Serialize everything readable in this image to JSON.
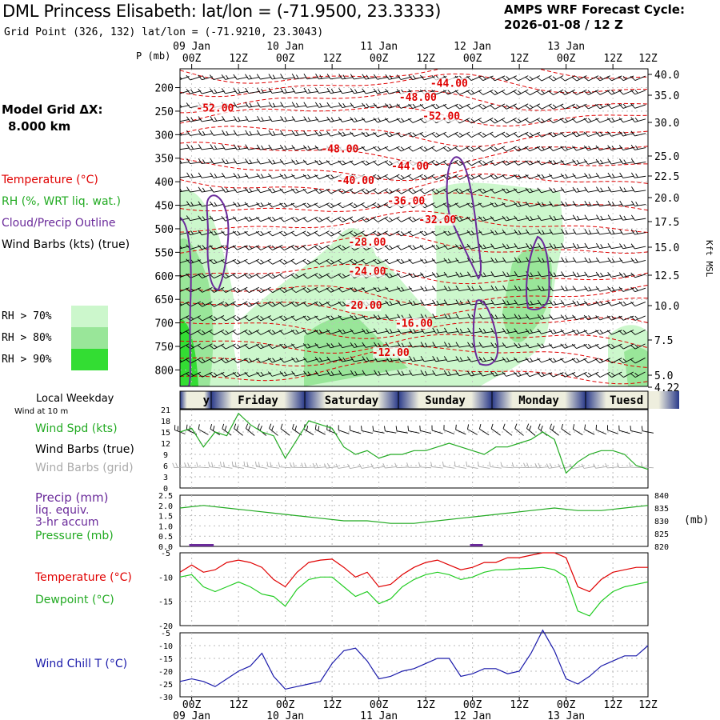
{
  "header": {
    "title": "DML Princess Elisabeth:  lat/lon = (-71.9500, 23.3333)",
    "subtitle": "Grid Point (326, 132) lat/lon = (-71.9210, 23.3043)",
    "cycle_line1": "AMPS WRF Forecast Cycle:",
    "cycle_line2": "2026-01-08 / 12  Z"
  },
  "side": {
    "grid_line1": "Model Grid ΔX:",
    "grid_line2": "8.000 km",
    "legend": [
      {
        "label": "Temperature (°C)",
        "color": "#e00000"
      },
      {
        "label": "RH (%, WRT liq. wat.)",
        "color": "#22cc22"
      },
      {
        "label": "Cloud/Precip Outline",
        "color": "#6a2a9a"
      },
      {
        "label": "Wind Barbs (kts) (true)",
        "color": "#000000"
      }
    ],
    "rh_levels": [
      {
        "label": "RH > 70%",
        "color": "#ccf7cc"
      },
      {
        "label": "RH > 80%",
        "color": "#99e699"
      },
      {
        "label": "RH > 90%",
        "color": "#33dd33"
      }
    ]
  },
  "time_axis": {
    "top_dates": [
      "09 Jan",
      "10 Jan",
      "11 Jan",
      "12 Jan",
      "13 Jan"
    ],
    "hours": [
      "00Z",
      "12Z",
      "00Z",
      "12Z",
      "00Z",
      "12Z",
      "00Z",
      "12Z",
      "00Z",
      "12Z"
    ],
    "bottom_hours": [
      "00Z",
      "12Z",
      "00Z",
      "12Z",
      "00Z",
      "12Z",
      "00Z",
      "12Z",
      "00Z",
      "12Z"
    ],
    "bottom_dates": [
      "09 Jan",
      "10 Jan",
      "11 Jan",
      "12 Jan",
      "13 Jan"
    ]
  },
  "weekday": {
    "label": "Local Weekday",
    "days": [
      "y",
      "Friday",
      "Saturday",
      "Sunday",
      "Monday",
      "Tuesd"
    ]
  },
  "wind10": {
    "label": "Wind at 10 m",
    "series": [
      {
        "label": "Wind Spd (kts)",
        "color": "#22aa22"
      },
      {
        "label": "Wind Barbs (true)",
        "color": "#000000"
      },
      {
        "label": "Wind Barbs (grid)",
        "color": "#aaaaaa"
      }
    ]
  },
  "precip_panel": {
    "labels": [
      {
        "text": "Precip (mm)",
        "color": "#6a2a9a"
      },
      {
        "text": "liq. equiv.",
        "color": "#6a2a9a"
      },
      {
        "text": "3-hr accum",
        "color": "#6a2a9a"
      },
      {
        "text": "Pressure (mb)",
        "color": "#22aa22"
      }
    ],
    "right_unit": "(mb)"
  },
  "temp_panel": {
    "labels": [
      {
        "text": "Temperature (°C)",
        "color": "#e00000"
      },
      {
        "text": "Dewpoint (°C)",
        "color": "#22aa22"
      }
    ]
  },
  "chill_panel": {
    "labels": [
      {
        "text": "Wind Chill T (°C)",
        "color": "#1a1aaa"
      }
    ]
  },
  "chart_data": [
    {
      "type": "heatmap",
      "name": "cross-section",
      "ylabel_left": "P (mb)",
      "ylabel_right": "Kft MSL",
      "y_ticks": [
        200,
        250,
        300,
        350,
        400,
        450,
        500,
        550,
        600,
        650,
        700,
        750,
        800
      ],
      "right_ticks": [
        "40.0",
        "35.0",
        "30.0",
        "25.0",
        "22.5",
        "20.0",
        "17.5",
        "15.0",
        "12.5",
        "10.0",
        "7.5",
        "5.0",
        "4.22"
      ],
      "temperature_labels": [
        {
          "t": 66,
          "p": 198,
          "text": "-44.00"
        },
        {
          "t": 58,
          "p": 228,
          "text": "-48.00"
        },
        {
          "t": 6,
          "p": 251,
          "text": "-52.00"
        },
        {
          "t": 64,
          "p": 268,
          "text": "-52.00"
        },
        {
          "t": 38,
          "p": 338,
          "text": "-48.00"
        },
        {
          "t": 56,
          "p": 374,
          "text": "-44.00"
        },
        {
          "t": 42,
          "p": 405,
          "text": "-40.00"
        },
        {
          "t": 55,
          "p": 448,
          "text": "-36.00"
        },
        {
          "t": 63,
          "p": 488,
          "text": "-32.00"
        },
        {
          "t": 45,
          "p": 536,
          "text": "-28.00"
        },
        {
          "t": 45,
          "p": 598,
          "text": "-24.00"
        },
        {
          "t": 44,
          "p": 670,
          "text": "-20.00"
        },
        {
          "t": 57,
          "p": 708,
          "text": "-16.00"
        },
        {
          "t": 51,
          "p": 770,
          "text": "-12.00"
        }
      ]
    },
    {
      "type": "line",
      "name": "wind-speed-10m",
      "ylim": [
        0,
        21
      ],
      "y_ticks": [
        0,
        3,
        6,
        9,
        12,
        15,
        18,
        21
      ],
      "x": [
        -3,
        0,
        3,
        6,
        9,
        12,
        15,
        18,
        21,
        24,
        27,
        30,
        33,
        36,
        39,
        42,
        45,
        48,
        51,
        54,
        57,
        60,
        63,
        66,
        69,
        72,
        75,
        78,
        81,
        84,
        87,
        90,
        93,
        96,
        99,
        102,
        105,
        108,
        111,
        114,
        117
      ],
      "series": [
        {
          "name": "Wind Spd (kts)",
          "values": [
            15,
            16,
            11,
            15,
            14,
            20,
            17,
            15,
            14,
            8,
            13,
            18,
            17,
            16,
            11,
            9,
            10,
            8,
            9,
            9,
            10,
            10,
            11,
            12,
            11,
            10,
            9,
            11,
            11,
            12,
            13,
            15,
            13,
            4,
            7,
            9,
            10,
            10,
            9,
            6,
            5
          ]
        }
      ]
    },
    {
      "type": "line",
      "name": "pressure-precip",
      "ylim_left": [
        0,
        2.5
      ],
      "ylim_right": [
        820,
        840
      ],
      "y_ticks_left": [
        "0.0",
        "0.5",
        "1.0",
        "1.5",
        "2.0",
        "2.5"
      ],
      "y_ticks_right": [
        820,
        825,
        830,
        835,
        840
      ],
      "x": [
        -3,
        3,
        9,
        15,
        21,
        27,
        33,
        39,
        45,
        51,
        57,
        63,
        69,
        75,
        81,
        87,
        93,
        99,
        105,
        111,
        117
      ],
      "series": [
        {
          "name": "Pressure (mb)",
          "values": [
            835,
            836,
            835,
            834,
            833,
            832,
            831,
            830,
            830,
            829,
            829,
            830,
            831,
            832,
            833,
            834,
            835,
            834,
            834,
            835,
            836
          ]
        }
      ],
      "precip_bars": [
        {
          "x": 1,
          "value": 0.1
        },
        {
          "x": 4,
          "value": 0.1
        },
        {
          "x": 73,
          "value": 0.05
        }
      ]
    },
    {
      "type": "line",
      "name": "temperature-dewpoint",
      "ylim": [
        -20,
        -5
      ],
      "y_ticks": [
        -5,
        -10,
        -15,
        -20
      ],
      "x": [
        -3,
        0,
        3,
        6,
        9,
        12,
        15,
        18,
        21,
        24,
        27,
        30,
        33,
        36,
        39,
        42,
        45,
        48,
        51,
        54,
        57,
        60,
        63,
        66,
        69,
        72,
        75,
        78,
        81,
        84,
        87,
        90,
        93,
        96,
        99,
        102,
        105,
        108,
        111,
        114,
        117
      ],
      "series": [
        {
          "name": "Temperature (°C)",
          "values": [
            -9,
            -7.5,
            -9,
            -8.5,
            -7,
            -6.5,
            -7,
            -8,
            -10.5,
            -12,
            -9,
            -7,
            -6.5,
            -6.3,
            -8,
            -10,
            -9,
            -12,
            -11.5,
            -9.5,
            -8,
            -7,
            -6.5,
            -7.5,
            -8.5,
            -8,
            -7,
            -7,
            -6,
            -6,
            -5.5,
            -5,
            -5,
            -6,
            -12,
            -13,
            -10.5,
            -9,
            -8.5,
            -8,
            -8
          ]
        },
        {
          "name": "Dewpoint (°C)",
          "values": [
            -10,
            -9.5,
            -12,
            -13,
            -12,
            -11,
            -12,
            -13.5,
            -14,
            -16,
            -12.5,
            -10.5,
            -10,
            -10,
            -12,
            -14,
            -13,
            -15.5,
            -14.5,
            -12,
            -10.5,
            -9.5,
            -9,
            -9.5,
            -10.5,
            -10,
            -9,
            -8.5,
            -8.5,
            -8.3,
            -8.2,
            -8,
            -8.5,
            -10,
            -17,
            -18,
            -15,
            -13,
            -12,
            -11.5,
            -11
          ]
        }
      ]
    },
    {
      "type": "line",
      "name": "wind-chill",
      "ylim": [
        -30,
        -5
      ],
      "y_ticks": [
        -5,
        -10,
        -15,
        -20,
        -25,
        -30
      ],
      "x": [
        -3,
        0,
        3,
        6,
        9,
        12,
        15,
        18,
        21,
        24,
        27,
        30,
        33,
        36,
        39,
        42,
        45,
        48,
        51,
        54,
        57,
        60,
        63,
        66,
        69,
        72,
        75,
        78,
        81,
        84,
        87,
        90,
        93,
        96,
        99,
        102,
        105,
        108,
        111,
        114,
        117
      ],
      "series": [
        {
          "name": "Wind Chill T (°C)",
          "values": [
            -24,
            -23,
            -24,
            -26,
            -23,
            -20,
            -18,
            -13,
            -22,
            -27,
            -26,
            -25,
            -24,
            -17,
            -12,
            -11,
            -16,
            -23,
            -22,
            -20,
            -19,
            -17,
            -15,
            -15,
            -22,
            -21,
            -19,
            -19,
            -21,
            -20,
            -13,
            -4,
            -12,
            -23,
            -25,
            -22,
            -18,
            -16,
            -14,
            -14,
            -10
          ]
        }
      ]
    }
  ]
}
